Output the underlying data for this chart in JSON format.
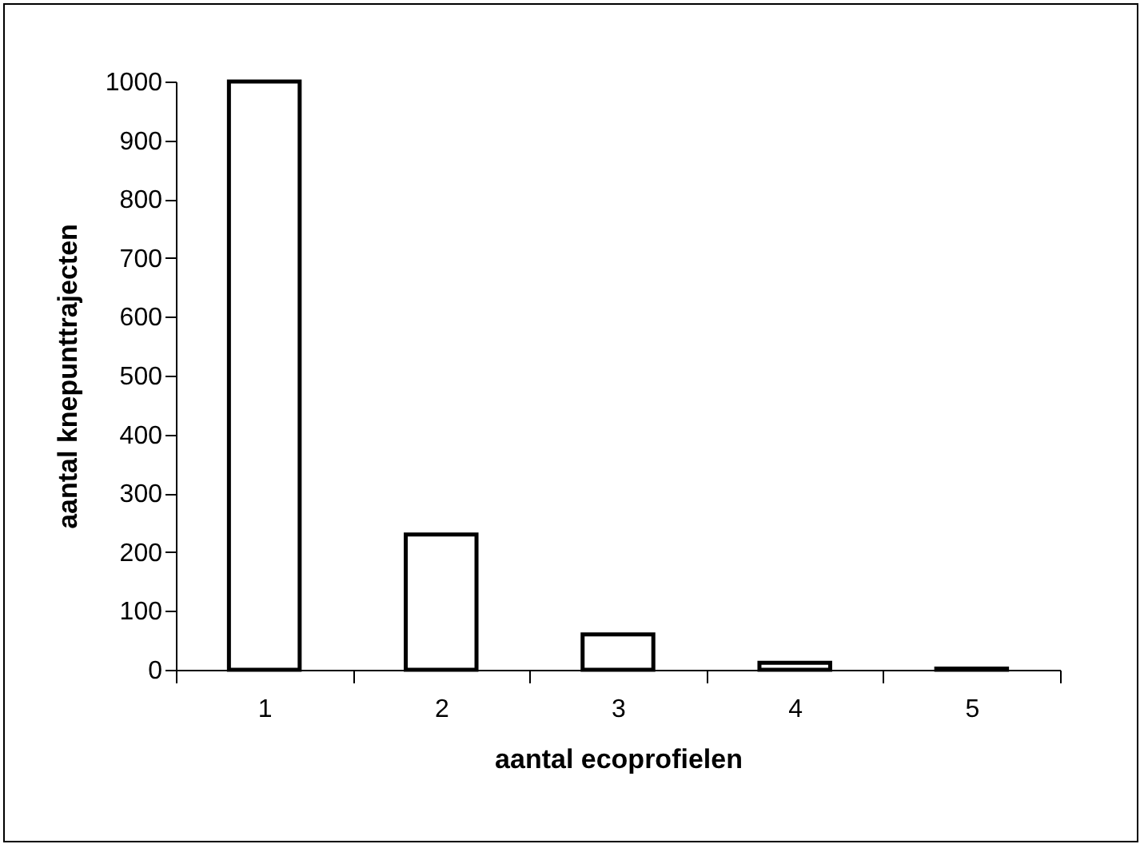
{
  "chart_data": {
    "type": "bar",
    "xlabel": "aantal ecoprofielen",
    "ylabel": "aantal knepunttrajecten",
    "categories": [
      "1",
      "2",
      "3",
      "4",
      "5"
    ],
    "values": [
      1000,
      230,
      60,
      12,
      2
    ],
    "color": "#ffffff",
    "ylim": [
      0,
      1000
    ],
    "yticks": [
      0,
      100,
      200,
      300,
      400,
      500,
      600,
      700,
      800,
      900,
      1000
    ],
    "grid": false
  }
}
